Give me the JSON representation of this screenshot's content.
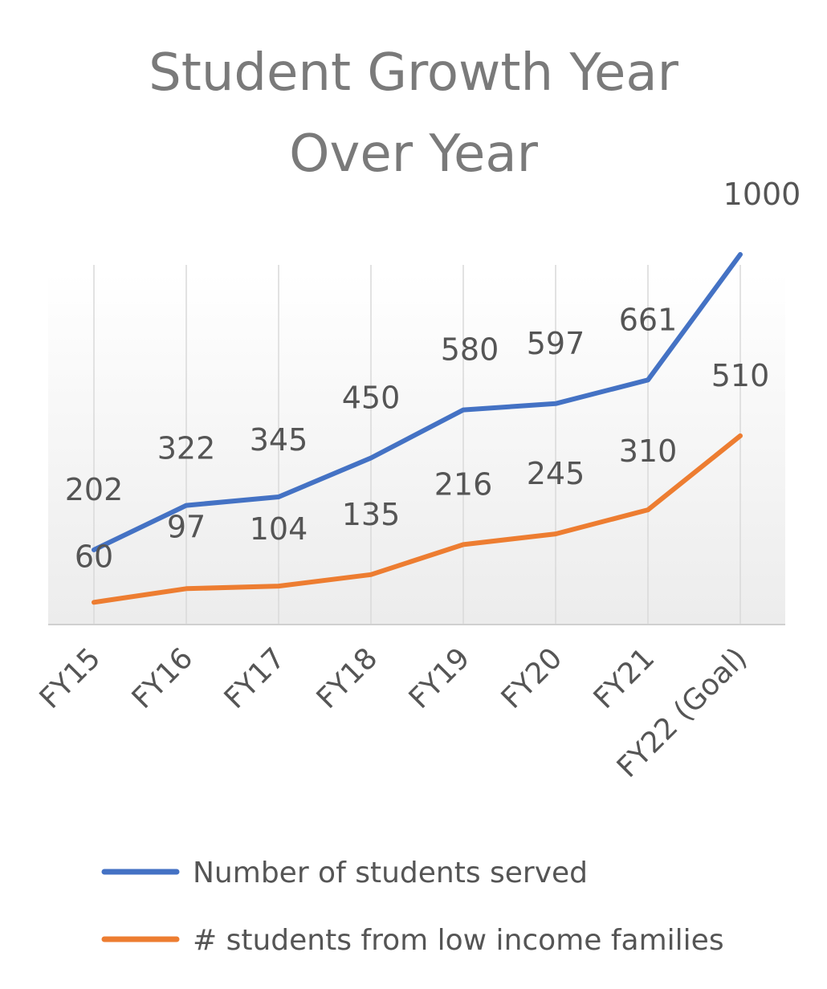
{
  "chart_data": {
    "type": "line",
    "title_lines": [
      "Student Growth Year",
      "Over Year"
    ],
    "categories": [
      "FY15",
      "FY16",
      "FY17",
      "FY18",
      "FY19",
      "FY20",
      "FY21",
      "FY22 (Goal)"
    ],
    "series": [
      {
        "name": "Number of students served",
        "color": "#4472C4",
        "values": [
          202,
          322,
          345,
          450,
          580,
          597,
          661,
          1000
        ]
      },
      {
        "name": "# students from low income families",
        "color": "#ED7D31",
        "values": [
          60,
          97,
          104,
          135,
          216,
          245,
          310,
          510
        ]
      }
    ],
    "ylim": [
      0,
      1000
    ],
    "grid": "vertical",
    "legend_position": "bottom",
    "data_labels": true
  }
}
